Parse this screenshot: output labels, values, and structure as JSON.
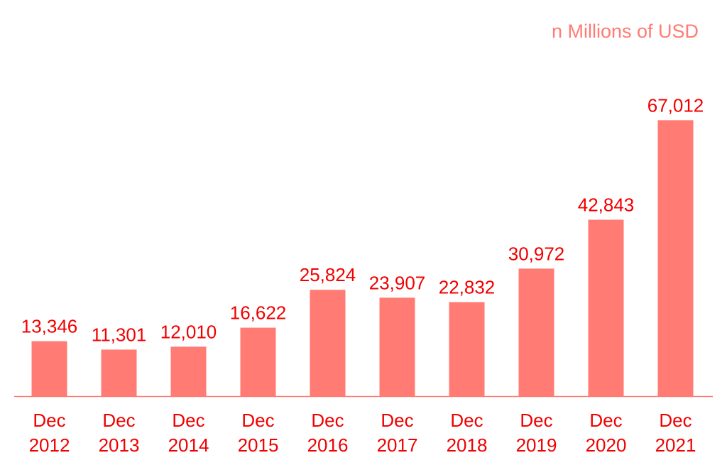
{
  "chart_data": {
    "type": "bar",
    "subtitle": "n Millions of USD",
    "categories": [
      [
        "Dec",
        "2012"
      ],
      [
        "Dec",
        "2013"
      ],
      [
        "Dec",
        "2014"
      ],
      [
        "Dec",
        "2015"
      ],
      [
        "Dec",
        "2016"
      ],
      [
        "Dec",
        "2017"
      ],
      [
        "Dec",
        "2018"
      ],
      [
        "Dec",
        "2019"
      ],
      [
        "Dec",
        "2020"
      ],
      [
        "Dec",
        "2021"
      ]
    ],
    "values": [
      13346,
      11301,
      12010,
      16622,
      25824,
      23907,
      22832,
      30972,
      42843,
      67012
    ],
    "data_labels": [
      "13,346",
      "11,301",
      "12,010",
      "16,622",
      "25,824",
      "23,907",
      "22,832",
      "30,972",
      "42,843",
      "67,012"
    ],
    "ylim": [
      0,
      80000
    ],
    "grid": false,
    "legend": "none",
    "colors": {
      "bar": "#ff7b73",
      "label": "#f20000",
      "unit_label": "#ff7b73",
      "axis": "#ff7b73"
    }
  }
}
